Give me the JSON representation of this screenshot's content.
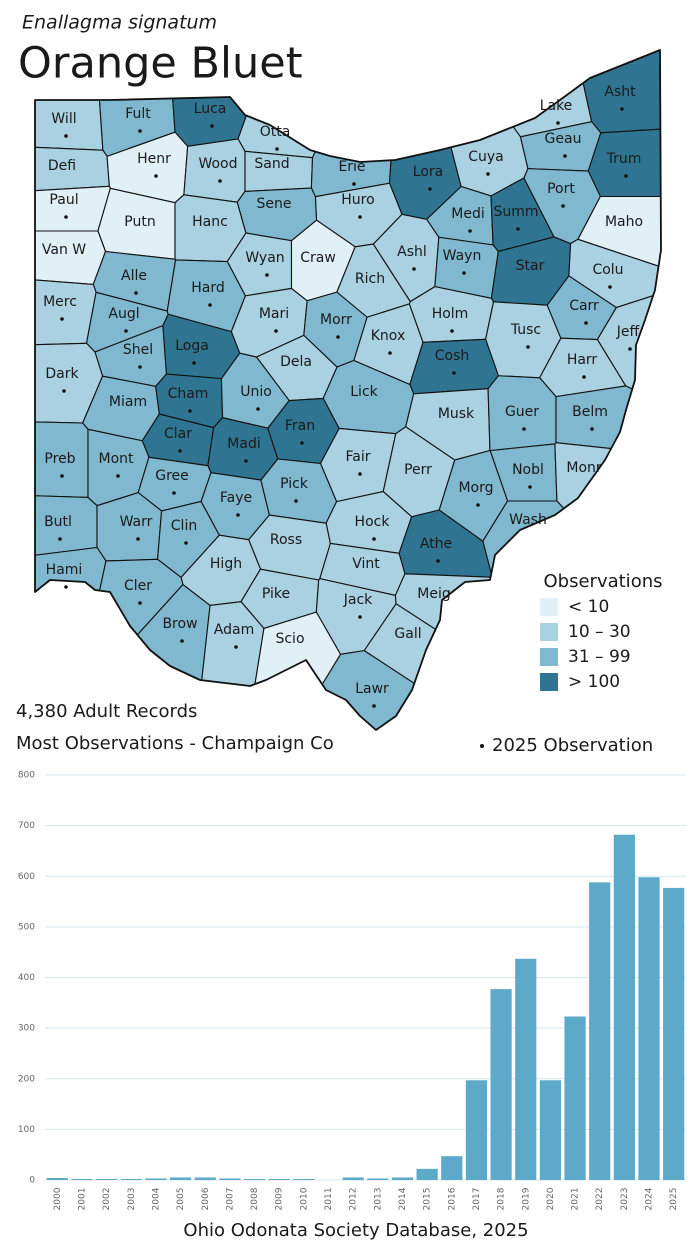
{
  "header": {
    "subtitle": "Enallagma signatum",
    "title": "Orange Bluet"
  },
  "map": {
    "legend": {
      "title": "Observations",
      "items": [
        {
          "label": "< 10",
          "color": "#e1f0f6"
        },
        {
          "label": "10 – 30",
          "color": "#a9d1e2"
        },
        {
          "label": "31 – 99",
          "color": "#7fb8cf"
        },
        {
          "label": "> 100",
          "color": "#2f7490"
        }
      ]
    },
    "dot_label": "2025  Observation",
    "counties": [
      {
        "name": "Will",
        "bin": 1,
        "dot": true
      },
      {
        "name": "Fult",
        "bin": 2,
        "dot": true
      },
      {
        "name": "Luca",
        "bin": 3,
        "dot": true
      },
      {
        "name": "Otta",
        "bin": 1,
        "dot": true
      },
      {
        "name": "Lake",
        "bin": 1,
        "dot": true
      },
      {
        "name": "Asht",
        "bin": 3,
        "dot": true
      },
      {
        "name": "Defi",
        "bin": 1,
        "dot": false
      },
      {
        "name": "Henr",
        "bin": 0,
        "dot": true
      },
      {
        "name": "Wood",
        "bin": 1,
        "dot": true
      },
      {
        "name": "Sand",
        "bin": 1,
        "dot": false
      },
      {
        "name": "Erie",
        "bin": 2,
        "dot": true
      },
      {
        "name": "Lora",
        "bin": 3,
        "dot": true
      },
      {
        "name": "Cuya",
        "bin": 1,
        "dot": true
      },
      {
        "name": "Geau",
        "bin": 2,
        "dot": true
      },
      {
        "name": "Trum",
        "bin": 3,
        "dot": true
      },
      {
        "name": "Paul",
        "bin": 0,
        "dot": true
      },
      {
        "name": "Putn",
        "bin": 0,
        "dot": false
      },
      {
        "name": "Hanc",
        "bin": 1,
        "dot": false
      },
      {
        "name": "Sene",
        "bin": 2,
        "dot": false
      },
      {
        "name": "Huro",
        "bin": 1,
        "dot": true
      },
      {
        "name": "Medi",
        "bin": 2,
        "dot": true
      },
      {
        "name": "Summ",
        "bin": 3,
        "dot": true
      },
      {
        "name": "Port",
        "bin": 2,
        "dot": true
      },
      {
        "name": "Maho",
        "bin": 0,
        "dot": false
      },
      {
        "name": "Van W",
        "bin": 0,
        "dot": false
      },
      {
        "name": "Alle",
        "bin": 2,
        "dot": true
      },
      {
        "name": "Wyan",
        "bin": 1,
        "dot": true
      },
      {
        "name": "Craw",
        "bin": 0,
        "dot": false
      },
      {
        "name": "Rich",
        "bin": 1,
        "dot": false
      },
      {
        "name": "Ashl",
        "bin": 1,
        "dot": true
      },
      {
        "name": "Wayn",
        "bin": 2,
        "dot": true
      },
      {
        "name": "Star",
        "bin": 3,
        "dot": false
      },
      {
        "name": "Colu",
        "bin": 1,
        "dot": true
      },
      {
        "name": "Merc",
        "bin": 1,
        "dot": true
      },
      {
        "name": "Augl",
        "bin": 2,
        "dot": true
      },
      {
        "name": "Hard",
        "bin": 2,
        "dot": true
      },
      {
        "name": "Mari",
        "bin": 1,
        "dot": true
      },
      {
        "name": "Morr",
        "bin": 2,
        "dot": true
      },
      {
        "name": "Knox",
        "bin": 1,
        "dot": true
      },
      {
        "name": "Holm",
        "bin": 1,
        "dot": true
      },
      {
        "name": "Tusc",
        "bin": 1,
        "dot": true
      },
      {
        "name": "Carr",
        "bin": 2,
        "dot": true
      },
      {
        "name": "Jeff",
        "bin": 1,
        "dot": true
      },
      {
        "name": "Shel",
        "bin": 2,
        "dot": true
      },
      {
        "name": "Loga",
        "bin": 3,
        "dot": true
      },
      {
        "name": "Dela",
        "bin": 1,
        "dot": false
      },
      {
        "name": "Cosh",
        "bin": 3,
        "dot": true
      },
      {
        "name": "Harr",
        "bin": 1,
        "dot": true
      },
      {
        "name": "Dark",
        "bin": 1,
        "dot": true
      },
      {
        "name": "Miam",
        "bin": 2,
        "dot": false
      },
      {
        "name": "Cham",
        "bin": 3,
        "dot": true
      },
      {
        "name": "Unio",
        "bin": 2,
        "dot": true
      },
      {
        "name": "Lick",
        "bin": 2,
        "dot": false
      },
      {
        "name": "Musk",
        "bin": 1,
        "dot": false
      },
      {
        "name": "Guer",
        "bin": 2,
        "dot": true
      },
      {
        "name": "Belm",
        "bin": 2,
        "dot": true
      },
      {
        "name": "Clar",
        "bin": 3,
        "dot": true
      },
      {
        "name": "Madi",
        "bin": 3,
        "dot": true
      },
      {
        "name": "Fran",
        "bin": 3,
        "dot": true
      },
      {
        "name": "Preb",
        "bin": 2,
        "dot": true
      },
      {
        "name": "Mont",
        "bin": 2,
        "dot": true
      },
      {
        "name": "Gree",
        "bin": 2,
        "dot": true
      },
      {
        "name": "Fair",
        "bin": 1,
        "dot": true
      },
      {
        "name": "Perr",
        "bin": 1,
        "dot": false
      },
      {
        "name": "Nobl",
        "bin": 2,
        "dot": true
      },
      {
        "name": "Monr",
        "bin": 1,
        "dot": false
      },
      {
        "name": "Faye",
        "bin": 2,
        "dot": true
      },
      {
        "name": "Pick",
        "bin": 2,
        "dot": true
      },
      {
        "name": "Morg",
        "bin": 2,
        "dot": true
      },
      {
        "name": "Butl",
        "bin": 2,
        "dot": true
      },
      {
        "name": "Warr",
        "bin": 2,
        "dot": true
      },
      {
        "name": "Clin",
        "bin": 2,
        "dot": true
      },
      {
        "name": "Hock",
        "bin": 1,
        "dot": true
      },
      {
        "name": "Wash",
        "bin": 2,
        "dot": false
      },
      {
        "name": "Ross",
        "bin": 1,
        "dot": false
      },
      {
        "name": "Athe",
        "bin": 3,
        "dot": true
      },
      {
        "name": "Hami",
        "bin": 2,
        "dot": true
      },
      {
        "name": "High",
        "bin": 1,
        "dot": false
      },
      {
        "name": "Vint",
        "bin": 1,
        "dot": false
      },
      {
        "name": "Cler",
        "bin": 2,
        "dot": true
      },
      {
        "name": "Pike",
        "bin": 1,
        "dot": false
      },
      {
        "name": "Jack",
        "bin": 1,
        "dot": true
      },
      {
        "name": "Meig",
        "bin": 1,
        "dot": false
      },
      {
        "name": "Brow",
        "bin": 2,
        "dot": true
      },
      {
        "name": "Adam",
        "bin": 1,
        "dot": true
      },
      {
        "name": "Gall",
        "bin": 1,
        "dot": false
      },
      {
        "name": "Scio",
        "bin": 0,
        "dot": false
      },
      {
        "name": "Lawr",
        "bin": 2,
        "dot": true
      }
    ]
  },
  "summary": {
    "records": "4,380 Adult Records",
    "most": "Most Observations - Champaign Co"
  },
  "chart_data": {
    "type": "bar",
    "categories": [
      "2000",
      "2001",
      "2002",
      "2003",
      "2004",
      "2005",
      "2006",
      "2007",
      "2008",
      "2009",
      "2010",
      "2011",
      "2012",
      "2013",
      "2014",
      "2015",
      "2016",
      "2017",
      "2018",
      "2019",
      "2020",
      "2021",
      "2022",
      "2023",
      "2024",
      "2025"
    ],
    "values": [
      4,
      2,
      2,
      2,
      3,
      5,
      5,
      3,
      2,
      2,
      2,
      0,
      5,
      3,
      5,
      22,
      47,
      197,
      377,
      437,
      197,
      323,
      588,
      682,
      598,
      577
    ],
    "color": "#5ca9c9",
    "ylim": [
      0,
      800
    ],
    "yticks": [
      0,
      100,
      200,
      300,
      400,
      500,
      600,
      700,
      800
    ],
    "grid": true
  },
  "footer": "Ohio Odonata Society Database, 2025"
}
